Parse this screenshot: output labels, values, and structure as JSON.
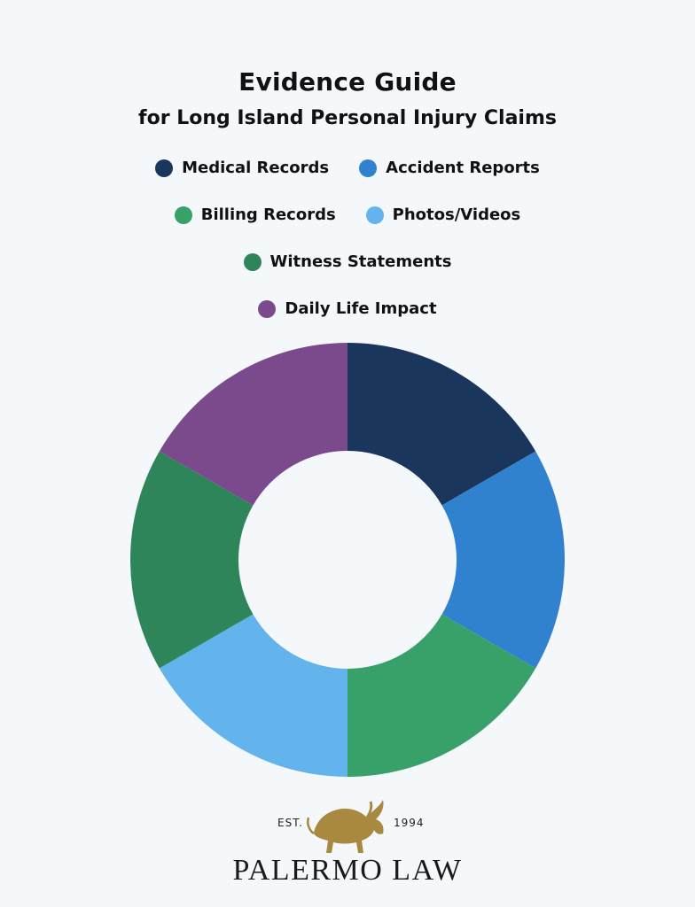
{
  "title": "Evidence Guide",
  "subtitle": "for Long Island Personal Injury Claims",
  "chart_data": {
    "type": "pie",
    "donut": true,
    "legend_position": "top",
    "categories": [
      "Medical Records",
      "Accident Reports",
      "Billing Records",
      "Photos/Videos",
      "Witness Statements",
      "Daily Life Impact"
    ],
    "values": [
      1,
      1,
      1,
      1,
      1,
      1
    ],
    "colors": [
      "#1b365d",
      "#3182ce",
      "#38a169",
      "#63b3ed",
      "#2f855a",
      "#7b4a8c"
    ]
  },
  "logo": {
    "est_left": "EST.",
    "est_right": "1994",
    "name": "PALERMO LAW",
    "icon": "bull-icon"
  }
}
